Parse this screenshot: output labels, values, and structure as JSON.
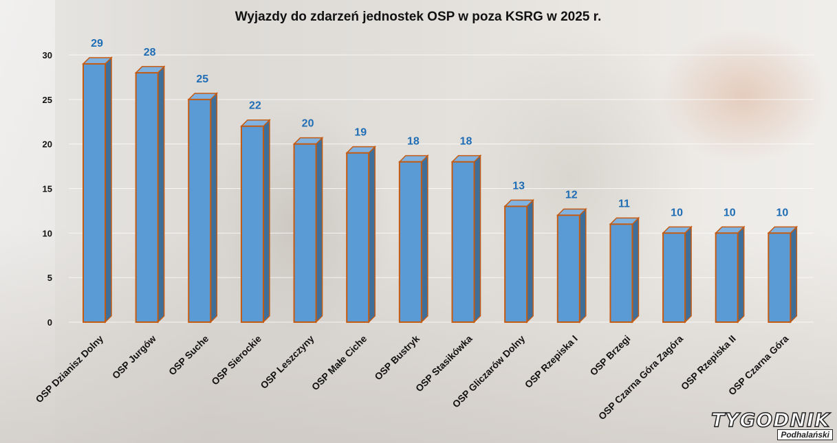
{
  "chart_data": {
    "type": "bar",
    "title": "Wyjazdy do zdarzeń jednostek OSP w poza KSRG w 2025 r.",
    "xlabel": "",
    "ylabel": "",
    "ylim": [
      0,
      30
    ],
    "yticks": [
      "0",
      "5",
      "10",
      "15",
      "20",
      "25",
      "30"
    ],
    "grid": true,
    "categories": [
      "OSP Dzianisz Dolny",
      "OSP Jurgów",
      "OSP Suche",
      "OSP Sierockie",
      "OSP Leszczyny",
      "OSP Małe Ciche",
      "OSP Bustryk",
      "OSP Stasikówka",
      "OSP Gliczarów Dolny",
      "OSP Rzepiska I",
      "OSP Brzegi",
      "OSP Czarna Góra Zagóra",
      "OSP Rzepiska II",
      "OSP Czarna Góra"
    ],
    "values": [
      29,
      28,
      25,
      22,
      20,
      19,
      18,
      18,
      13,
      12,
      11,
      10,
      10,
      10
    ],
    "bar_color": "#5b9bd5",
    "bar_side_color": "#3f6f99",
    "bar_outline_color": "#c55a11",
    "label_color": "#1f6db4"
  },
  "watermark": {
    "name": "TYGODNIK",
    "sub": "Podhalański"
  }
}
